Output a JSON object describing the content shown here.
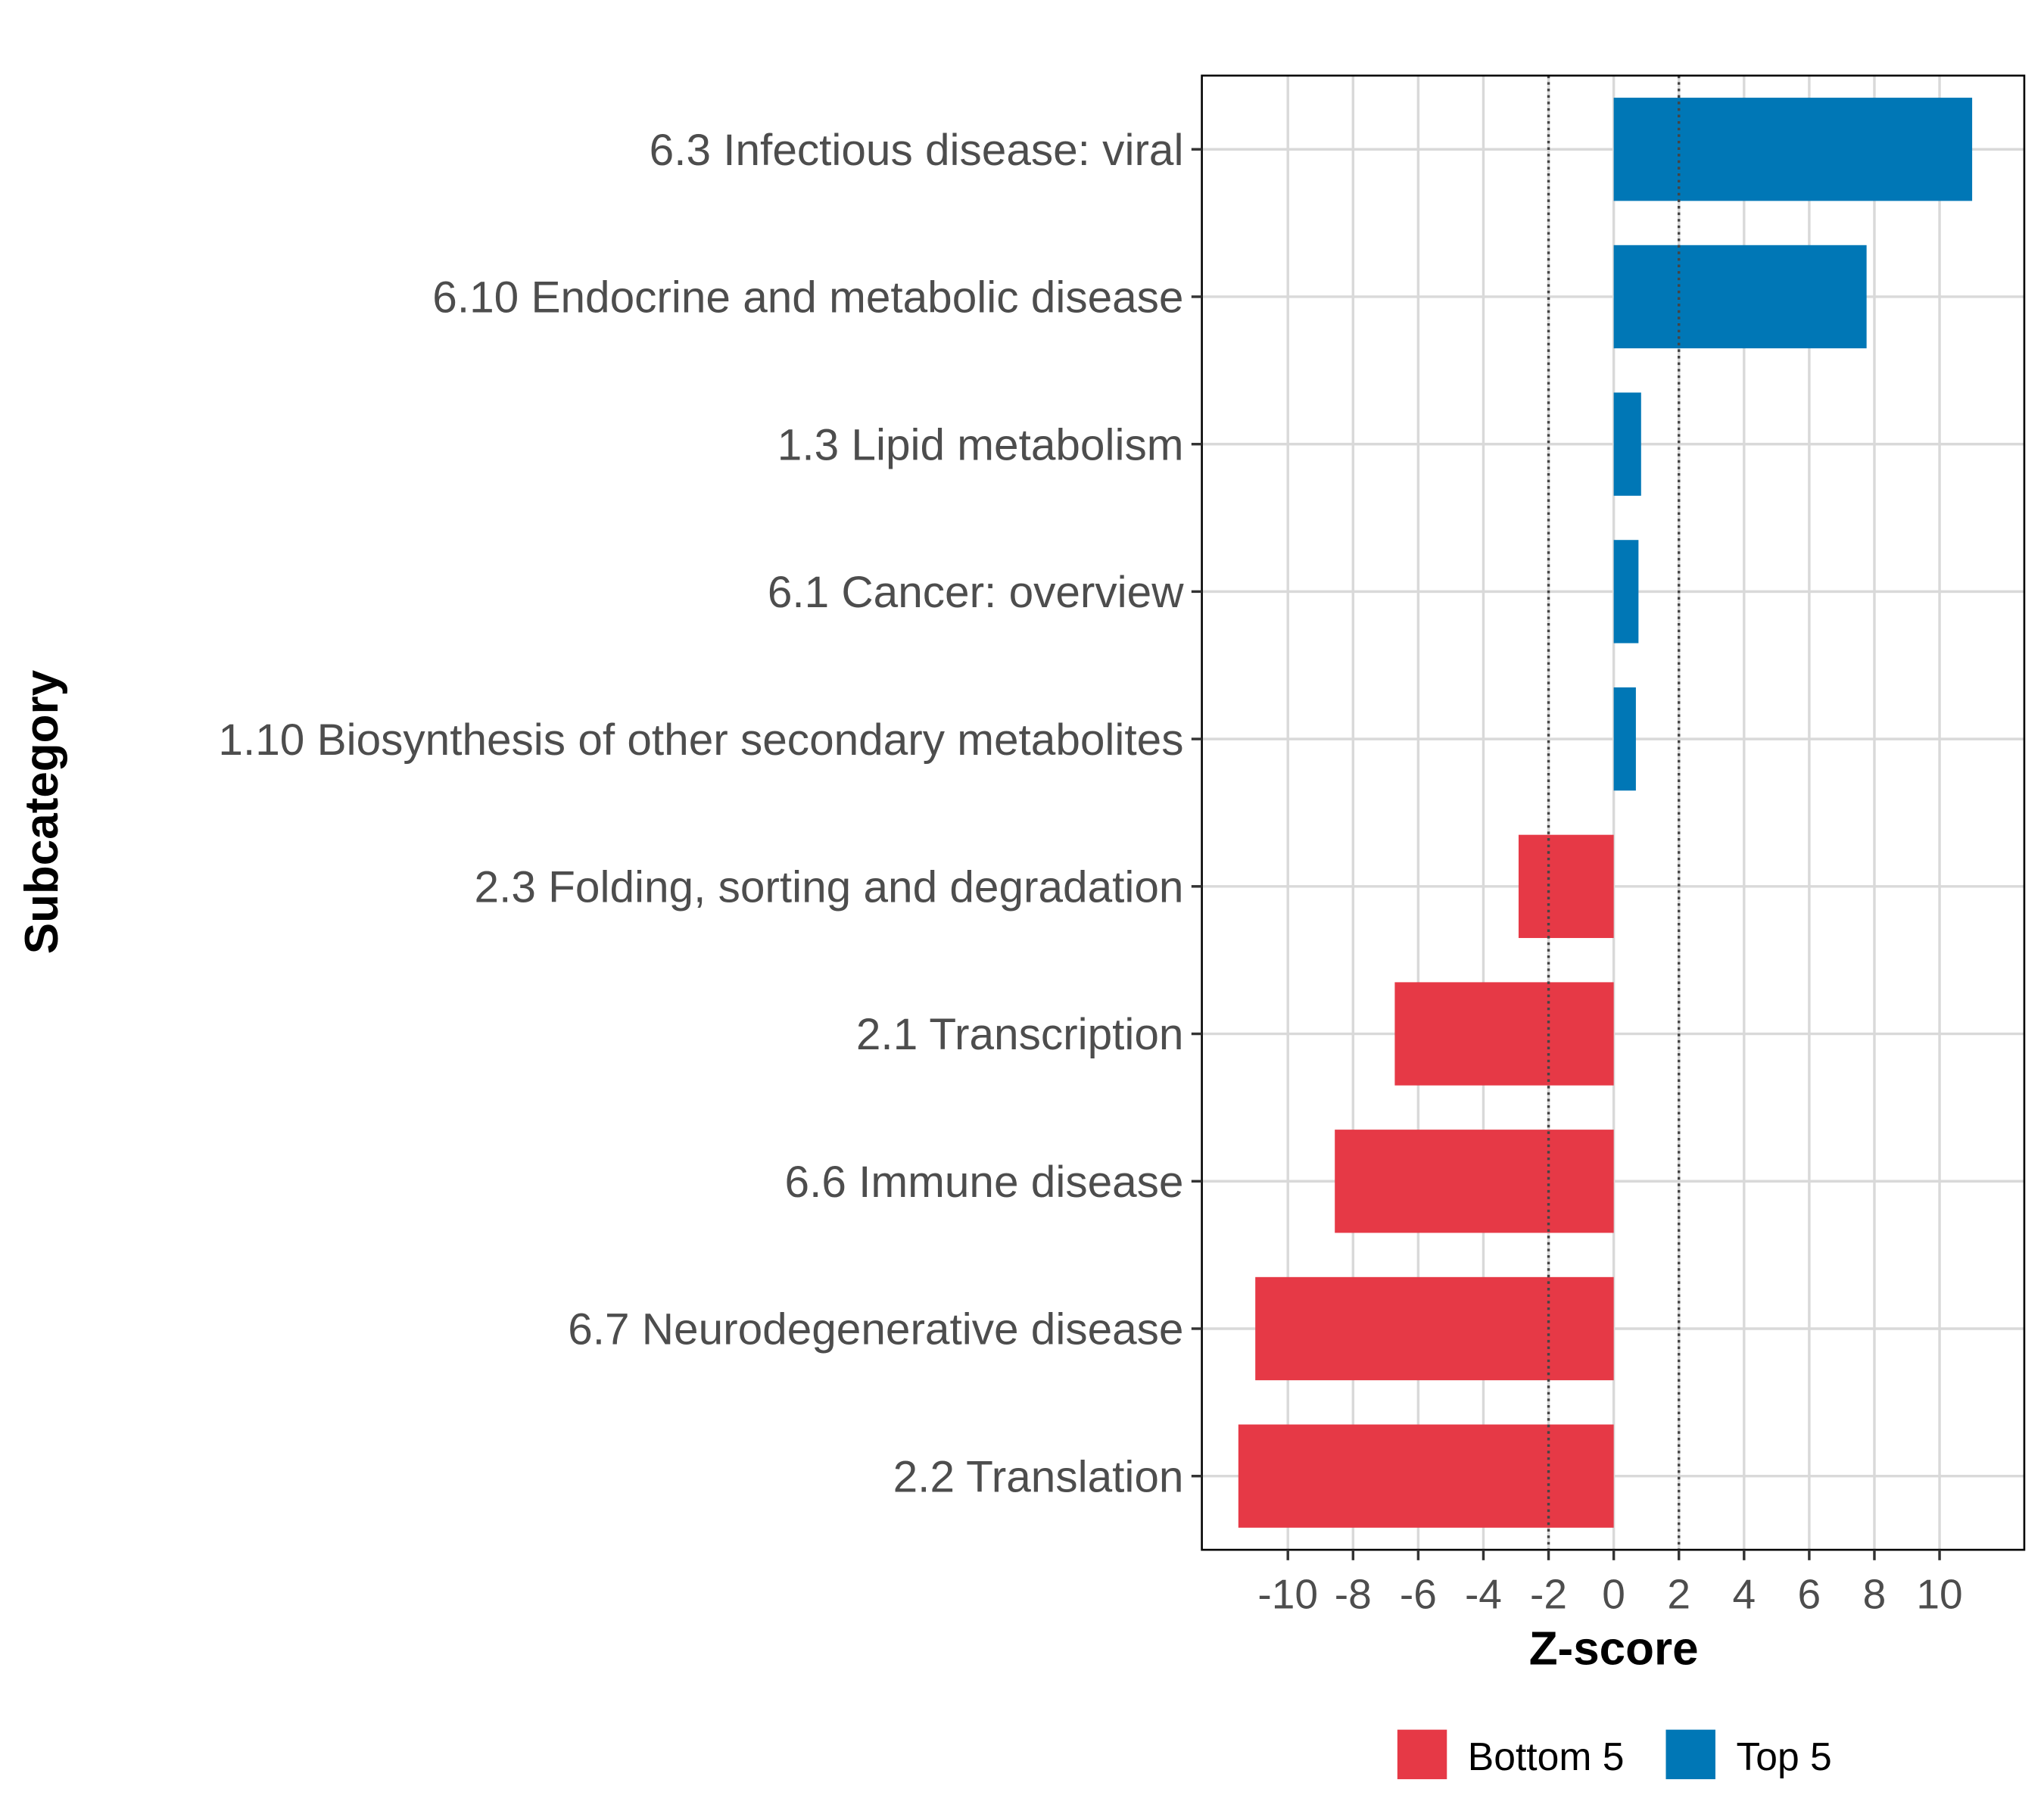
{
  "chart_data": {
    "type": "bar",
    "orientation": "horizontal",
    "xlabel": "Z-score",
    "ylabel": "Subcategory",
    "xlim": [
      -12.64,
      12.6
    ],
    "xticks": [
      -10,
      -8,
      -6,
      -4,
      -2,
      0,
      2,
      4,
      6,
      8,
      10
    ],
    "xtick_labels": [
      "-10",
      "-8",
      "-6",
      "-4",
      "-2",
      "0",
      "2",
      "4",
      "6",
      "8",
      "10"
    ],
    "reference_lines": [
      -2,
      2
    ],
    "grid": true,
    "legend_position": "bottom",
    "legend": [
      {
        "name": "Bottom 5",
        "color": "#E63946"
      },
      {
        "name": "Top 5",
        "color": "#0077B6"
      }
    ],
    "categories": [
      "6.3 Infectious disease: viral",
      "6.10 Endocrine and metabolic disease",
      "1.3 Lipid metabolism",
      "6.1 Cancer: overview",
      "1.10 Biosynthesis of other secondary metabolites",
      "2.3 Folding, sorting and degradation",
      "2.1 Transcription",
      "6.6 Immune disease",
      "6.7 Neurodegenerative disease",
      "2.2 Translation"
    ],
    "values": [
      11.0,
      7.76,
      0.84,
      0.76,
      0.68,
      -2.92,
      -6.72,
      -8.56,
      -11.0,
      -11.52
    ],
    "groups": [
      "Top 5",
      "Top 5",
      "Top 5",
      "Top 5",
      "Top 5",
      "Bottom 5",
      "Bottom 5",
      "Bottom 5",
      "Bottom 5",
      "Bottom 5"
    ]
  }
}
